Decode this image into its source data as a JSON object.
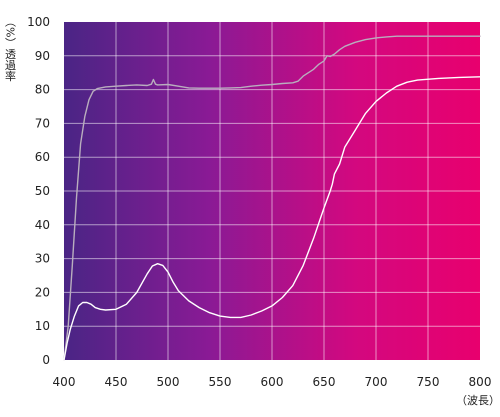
{
  "chart_data": {
    "type": "line",
    "title": "",
    "ylabel": "（%）透過率",
    "xlabel": "（波長）",
    "xlim": [
      400,
      800
    ],
    "ylim": [
      0,
      100
    ],
    "x_ticks": [
      400,
      450,
      500,
      550,
      600,
      650,
      700,
      750,
      800
    ],
    "y_ticks": [
      0,
      10,
      20,
      30,
      40,
      50,
      60,
      70,
      80,
      90,
      100
    ],
    "grid": true,
    "background_gradient": [
      "#4a2585",
      "#8a1a95",
      "#d3087f",
      "#e8006e"
    ],
    "series": [
      {
        "color": "#b9aebe",
        "points": [
          [
            400,
            0
          ],
          [
            404,
            10
          ],
          [
            408,
            28
          ],
          [
            412,
            48
          ],
          [
            416,
            64
          ],
          [
            420,
            72
          ],
          [
            424,
            77
          ],
          [
            428,
            79.5
          ],
          [
            432,
            80.3
          ],
          [
            440,
            80.8
          ],
          [
            450,
            81
          ],
          [
            460,
            81.2
          ],
          [
            470,
            81.4
          ],
          [
            480,
            81.2
          ],
          [
            484,
            81.6
          ],
          [
            486,
            83
          ],
          [
            488,
            81.6
          ],
          [
            490,
            81.4
          ],
          [
            500,
            81.5
          ],
          [
            510,
            81
          ],
          [
            520,
            80.5
          ],
          [
            530,
            80.4
          ],
          [
            540,
            80.4
          ],
          [
            550,
            80.4
          ],
          [
            560,
            80.5
          ],
          [
            570,
            80.6
          ],
          [
            580,
            81
          ],
          [
            590,
            81.3
          ],
          [
            600,
            81.5
          ],
          [
            610,
            81.8
          ],
          [
            620,
            82
          ],
          [
            625,
            82.5
          ],
          [
            630,
            84
          ],
          [
            635,
            85
          ],
          [
            640,
            86
          ],
          [
            645,
            87.5
          ],
          [
            650,
            88.5
          ],
          [
            653,
            90
          ],
          [
            656,
            89.8
          ],
          [
            660,
            90.5
          ],
          [
            665,
            91.8
          ],
          [
            670,
            92.8
          ],
          [
            680,
            94
          ],
          [
            690,
            94.8
          ],
          [
            700,
            95.3
          ],
          [
            710,
            95.6
          ],
          [
            720,
            95.8
          ],
          [
            740,
            95.8
          ],
          [
            760,
            95.8
          ],
          [
            780,
            95.8
          ],
          [
            800,
            95.8
          ]
        ]
      },
      {
        "color": "#ffffff",
        "points": [
          [
            400,
            0
          ],
          [
            403,
            5
          ],
          [
            406,
            9
          ],
          [
            410,
            13
          ],
          [
            414,
            16
          ],
          [
            418,
            17
          ],
          [
            422,
            17
          ],
          [
            426,
            16.5
          ],
          [
            430,
            15.5
          ],
          [
            435,
            15
          ],
          [
            440,
            14.8
          ],
          [
            450,
            15
          ],
          [
            460,
            16.5
          ],
          [
            470,
            20
          ],
          [
            480,
            25.5
          ],
          [
            485,
            27.8
          ],
          [
            490,
            28.5
          ],
          [
            495,
            28
          ],
          [
            500,
            26
          ],
          [
            505,
            23
          ],
          [
            510,
            20.5
          ],
          [
            520,
            17.5
          ],
          [
            530,
            15.5
          ],
          [
            540,
            14
          ],
          [
            550,
            13
          ],
          [
            560,
            12.6
          ],
          [
            570,
            12.6
          ],
          [
            580,
            13.3
          ],
          [
            590,
            14.5
          ],
          [
            600,
            16
          ],
          [
            610,
            18.5
          ],
          [
            620,
            22
          ],
          [
            630,
            28
          ],
          [
            640,
            36
          ],
          [
            650,
            45
          ],
          [
            656,
            50
          ],
          [
            658,
            52
          ],
          [
            660,
            55
          ],
          [
            665,
            58
          ],
          [
            670,
            63
          ],
          [
            680,
            68
          ],
          [
            690,
            73
          ],
          [
            700,
            76.5
          ],
          [
            710,
            79
          ],
          [
            720,
            81
          ],
          [
            730,
            82.2
          ],
          [
            740,
            82.8
          ],
          [
            760,
            83.3
          ],
          [
            780,
            83.6
          ],
          [
            800,
            83.8
          ]
        ]
      }
    ]
  }
}
